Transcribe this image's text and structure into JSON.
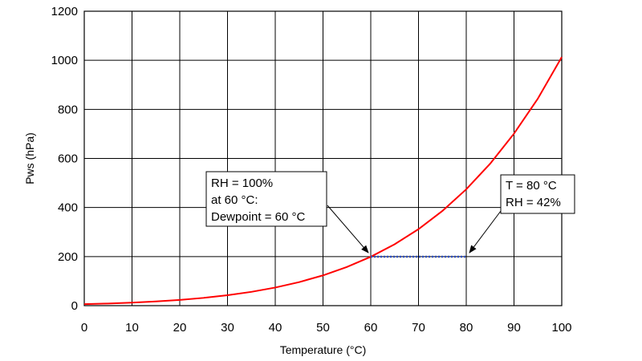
{
  "chart_data": {
    "type": "line",
    "xlabel": "Temperature (°C)",
    "ylabel": "Pws (hPa)",
    "xlim": [
      0,
      100
    ],
    "ylim": [
      0,
      1200
    ],
    "x_ticks": [
      0,
      10,
      20,
      30,
      40,
      50,
      60,
      70,
      80,
      90,
      100
    ],
    "y_ticks": [
      0,
      200,
      400,
      600,
      800,
      1000,
      1200
    ],
    "grid": true,
    "series": [
      {
        "color": "#ff0000",
        "x": [
          0,
          5,
          10,
          15,
          20,
          25,
          30,
          35,
          40,
          45,
          50,
          55,
          60,
          65,
          70,
          75,
          80,
          85,
          90,
          95,
          100
        ],
        "y": [
          6.1,
          8.7,
          12.3,
          17.0,
          23.4,
          31.7,
          42.4,
          56.2,
          73.8,
          95.9,
          123.4,
          157.5,
          199.3,
          250.1,
          311.8,
          386.0,
          474.2,
          578.4,
          701.1,
          844.0,
          1013.2
        ]
      }
    ],
    "highlight": {
      "color": "#3050c0",
      "style": "dotted",
      "x": [
        60,
        80
      ],
      "y": [
        199.3,
        199.3
      ]
    },
    "annotations": [
      {
        "lines": [
          "RH = 100%",
          "at 60 °C:",
          "Dewpoint = 60  °C"
        ],
        "target": [
          60,
          199.3
        ]
      },
      {
        "lines": [
          "T = 80 °C",
          "RH = 42%"
        ],
        "target": [
          80,
          199.3
        ]
      }
    ]
  }
}
